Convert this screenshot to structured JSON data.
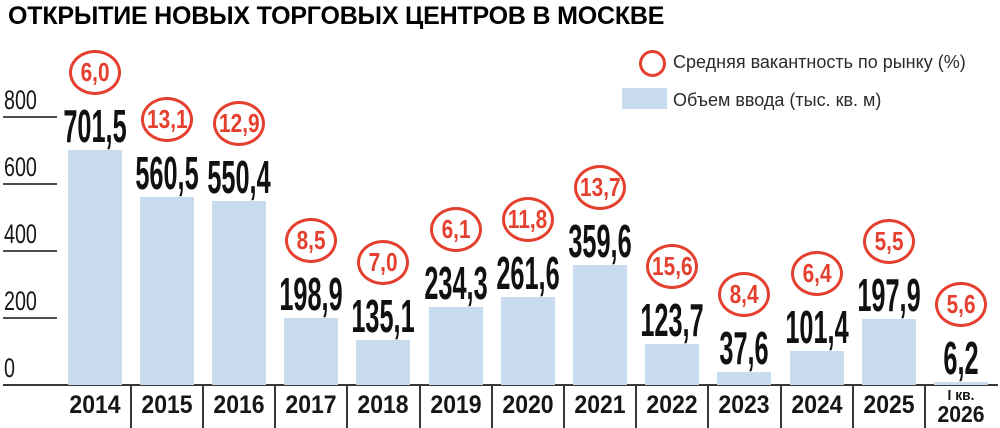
{
  "title": "ОТКРЫТИЕ НОВЫХ ТОРГОВЫХ ЦЕНТРОВ В МОСКВЕ",
  "legend": {
    "vacancy": "Средняя вакантность по рынку (%)",
    "volume": "Объем ввода (тыс. кв. м)"
  },
  "colors": {
    "bar_fill": "#c9dcee",
    "accent_red": "#e5402f",
    "axis_line": "#383838",
    "text_dark": "#161616"
  },
  "chart_data": {
    "type": "bar",
    "title": "ОТКРЫТИЕ НОВЫХ ТОРГОВЫХ ЦЕНТРОВ В МОСКВЕ",
    "categories": [
      "2014",
      "2015",
      "2016",
      "2017",
      "2018",
      "2019",
      "2020",
      "2021",
      "2022",
      "2023",
      "2024",
      "2025",
      "I кв.\n2026"
    ],
    "series": [
      {
        "name": "Объем ввода (тыс. кв. м)",
        "values": [
          701.5,
          560.5,
          550.4,
          198.9,
          135.1,
          234.3,
          261.6,
          359.6,
          123.7,
          37.6,
          101.4,
          197.9,
          6.2
        ],
        "display": [
          "701,5",
          "560,5",
          "550,4",
          "198,9",
          "135,1",
          "234,3",
          "261,6",
          "359,6",
          "123,7",
          "37,6",
          "101,4",
          "197,9",
          "6,2"
        ]
      },
      {
        "name": "Средняя вакантность по рынку (%)",
        "values": [
          6.0,
          13.1,
          12.9,
          8.5,
          7.0,
          6.1,
          11.8,
          13.7,
          15.6,
          8.4,
          6.4,
          5.5,
          5.6
        ],
        "display": [
          "6,0",
          "13,1",
          "12,9",
          "8,5",
          "7,0",
          "6,1",
          "11,8",
          "13,7",
          "15,6",
          "8,4",
          "6,4",
          "5,5",
          "5,6"
        ]
      }
    ],
    "y_ticks": [
      800,
      600,
      400,
      200,
      0
    ],
    "ylim": [
      0,
      800
    ],
    "xlabel": "",
    "ylabel": "",
    "grid": false,
    "legend_position": "top-right"
  }
}
